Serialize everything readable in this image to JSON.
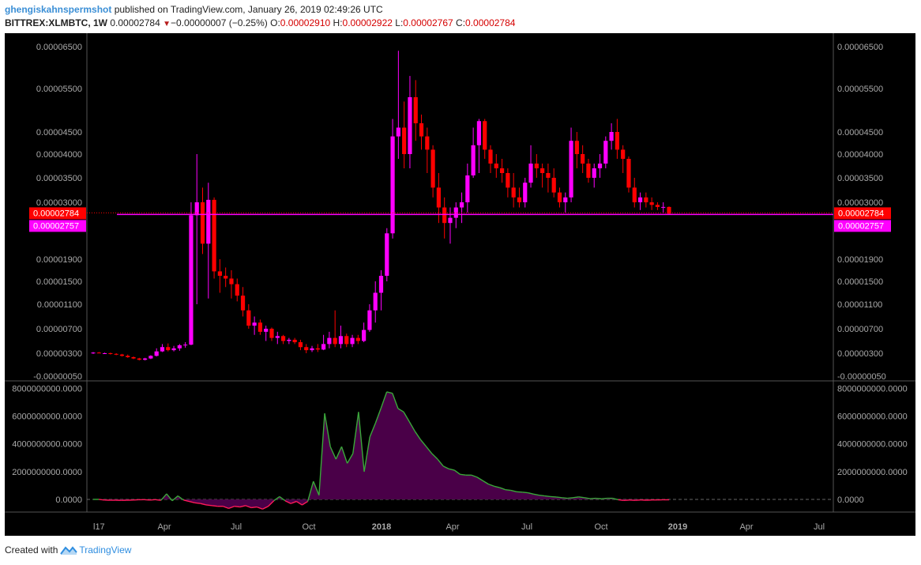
{
  "header": {
    "author": "ghengiskahnspermshot",
    "published": "published on TradingView.com, January 26, 2019 02:49:26 UTC",
    "symbol": "BITTREX:XLMBTC, 1W",
    "last": "0.00002784",
    "change": "−0.00000007 (−0.25%)",
    "o_label": "O:",
    "o_value": "0.00002910",
    "h_label": "H:",
    "h_value": "0.00002922",
    "l_label": "L:",
    "l_value": "0.00002767",
    "c_label": "C:",
    "c_value": "0.00002784"
  },
  "footer": {
    "created_with": "Created with",
    "brand": "TradingView"
  },
  "colors": {
    "up": "#ff00ff",
    "down": "#ff0000",
    "background": "#000000",
    "osc_fill": "#4a0048",
    "osc_line_pos": "#3aa83a",
    "osc_line_neg": "#ff1a5a"
  },
  "chart_data": [
    {
      "type": "candlestick",
      "title": "BITTREX:XLMBTC, 1W",
      "y_tick_labels": [
        "0.00006500",
        "0.00005500",
        "0.00004500",
        "0.00004000",
        "0.00003500",
        "0.00003000",
        "0.00001900",
        "0.00001500",
        "0.00001100",
        "0.00000700",
        "0.00000300",
        "-0.00000050"
      ],
      "price_labels": [
        {
          "value": "0.00002784",
          "color": "#ff0000"
        },
        {
          "value": "0.00002757",
          "color": "#ff00ff"
        }
      ],
      "x_tick_labels": [
        {
          "label": "l17",
          "bold": false
        },
        {
          "label": "Apr",
          "bold": false
        },
        {
          "label": "Jul",
          "bold": false
        },
        {
          "label": "Oct",
          "bold": false
        },
        {
          "label": "2018",
          "bold": true
        },
        {
          "label": "Apr",
          "bold": false
        },
        {
          "label": "Jul",
          "bold": false
        },
        {
          "label": "Oct",
          "bold": false
        },
        {
          "label": "2019",
          "bold": true
        },
        {
          "label": "Apr",
          "bold": false
        },
        {
          "label": "Jul",
          "bold": false
        }
      ],
      "candles": [
        {
          "o": 3e-06,
          "h": 3.2e-06,
          "l": 2.9e-06,
          "c": 3.1e-06
        },
        {
          "o": 3.1e-06,
          "h": 3.2e-06,
          "l": 3e-06,
          "c": 3e-06
        },
        {
          "o": 3e-06,
          "h": 3.1e-06,
          "l": 2.9e-06,
          "c": 3e-06
        },
        {
          "o": 3e-06,
          "h": 3.1e-06,
          "l": 2.8e-06,
          "c": 2.9e-06
        },
        {
          "o": 2.9e-06,
          "h": 3e-06,
          "l": 2.7e-06,
          "c": 2.8e-06
        },
        {
          "o": 2.8e-06,
          "h": 2.9e-06,
          "l": 2.5e-06,
          "c": 2.6e-06
        },
        {
          "o": 2.6e-06,
          "h": 2.8e-06,
          "l": 2.3e-06,
          "c": 2.4e-06
        },
        {
          "o": 2.4e-06,
          "h": 2.5e-06,
          "l": 2.1e-06,
          "c": 2.2e-06
        },
        {
          "o": 2.2e-06,
          "h": 2.3e-06,
          "l": 1.9e-06,
          "c": 2e-06
        },
        {
          "o": 2e-06,
          "h": 2.3e-06,
          "l": 1.9e-06,
          "c": 2.2e-06
        },
        {
          "o": 2.2e-06,
          "h": 2.7e-06,
          "l": 2.1e-06,
          "c": 2.6e-06
        },
        {
          "o": 2.6e-06,
          "h": 3.8e-06,
          "l": 2.5e-06,
          "c": 3.3e-06
        },
        {
          "o": 3.3e-06,
          "h": 4.5e-06,
          "l": 3.2e-06,
          "c": 4e-06
        },
        {
          "o": 4e-06,
          "h": 4.6e-06,
          "l": 3.3e-06,
          "c": 3.5e-06
        },
        {
          "o": 3.5e-06,
          "h": 4.2e-06,
          "l": 3.3e-06,
          "c": 3.8e-06
        },
        {
          "o": 3.8e-06,
          "h": 4.5e-06,
          "l": 3.4e-06,
          "c": 4.3e-06
        },
        {
          "o": 4.3e-06,
          "h": 4.8e-06,
          "l": 3.9e-06,
          "c": 4.4e-06
        },
        {
          "o": 4.4e-06,
          "h": 3e-05,
          "l": 4.3e-06,
          "c": 2.75e-05
        },
        {
          "o": 2.75e-05,
          "h": 4e-05,
          "l": 1.1e-05,
          "c": 3e-05
        },
        {
          "o": 3e-05,
          "h": 3.3e-05,
          "l": 2e-05,
          "c": 2.2e-05
        },
        {
          "o": 2.2e-05,
          "h": 3.4e-05,
          "l": 1.2e-05,
          "c": 3.05e-05
        },
        {
          "o": 3.05e-05,
          "h": 3.1e-05,
          "l": 1.55e-05,
          "c": 1.68e-05
        },
        {
          "o": 1.68e-05,
          "h": 1.9e-05,
          "l": 1.3e-05,
          "c": 1.6e-05
        },
        {
          "o": 1.6e-05,
          "h": 1.75e-05,
          "l": 1.4e-05,
          "c": 1.55e-05
        },
        {
          "o": 1.55e-05,
          "h": 1.7e-05,
          "l": 1.2e-05,
          "c": 1.45e-05
        },
        {
          "o": 1.45e-05,
          "h": 1.55e-05,
          "l": 1.15e-05,
          "c": 1.25e-05
        },
        {
          "o": 1.25e-05,
          "h": 1.4e-05,
          "l": 9e-06,
          "c": 1e-05
        },
        {
          "o": 1e-05,
          "h": 1.1e-05,
          "l": 7e-06,
          "c": 7.5e-06
        },
        {
          "o": 7.5e-06,
          "h": 9e-06,
          "l": 6e-06,
          "c": 8e-06
        },
        {
          "o": 8e-06,
          "h": 8.5e-06,
          "l": 6e-06,
          "c": 6.5e-06
        },
        {
          "o": 6.5e-06,
          "h": 7.5e-06,
          "l": 5e-06,
          "c": 7e-06
        },
        {
          "o": 7e-06,
          "h": 7.2e-06,
          "l": 5e-06,
          "c": 5.5e-06
        },
        {
          "o": 5.5e-06,
          "h": 6.5e-06,
          "l": 4.5e-06,
          "c": 5.8e-06
        },
        {
          "o": 5.8e-06,
          "h": 6e-06,
          "l": 4.5e-06,
          "c": 5e-06
        },
        {
          "o": 5e-06,
          "h": 5.5e-06,
          "l": 4.5e-06,
          "c": 5.2e-06
        },
        {
          "o": 5.2e-06,
          "h": 5.5e-06,
          "l": 4.5e-06,
          "c": 4.8e-06
        },
        {
          "o": 4.8e-06,
          "h": 5.2e-06,
          "l": 3.5e-06,
          "c": 4e-06
        },
        {
          "o": 4e-06,
          "h": 4.5e-06,
          "l": 3e-06,
          "c": 3.5e-06
        },
        {
          "o": 3.5e-06,
          "h": 4.2e-06,
          "l": 3.2e-06,
          "c": 3.8e-06
        },
        {
          "o": 3.8e-06,
          "h": 4.5e-06,
          "l": 3.2e-06,
          "c": 3.6e-06
        },
        {
          "o": 3.6e-06,
          "h": 6e-06,
          "l": 3.5e-06,
          "c": 4.5e-06
        },
        {
          "o": 4.5e-06,
          "h": 6.5e-06,
          "l": 3.8e-06,
          "c": 5.5e-06
        },
        {
          "o": 5.5e-06,
          "h": 1e-05,
          "l": 4e-06,
          "c": 4.5e-06
        },
        {
          "o": 4.5e-06,
          "h": 7.5e-06,
          "l": 3.8e-06,
          "c": 5.8e-06
        },
        {
          "o": 5.8e-06,
          "h": 6.2e-06,
          "l": 4e-06,
          "c": 4.5e-06
        },
        {
          "o": 4.5e-06,
          "h": 6e-06,
          "l": 4e-06,
          "c": 5.5e-06
        },
        {
          "o": 5.5e-06,
          "h": 6e-06,
          "l": 4.5e-06,
          "c": 5e-06
        },
        {
          "o": 5e-06,
          "h": 8e-06,
          "l": 4.8e-06,
          "c": 6.8e-06
        },
        {
          "o": 6.8e-06,
          "h": 1.1e-05,
          "l": 6.5e-06,
          "c": 1e-05
        },
        {
          "o": 1e-05,
          "h": 1.5e-05,
          "l": 8e-06,
          "c": 1.3e-05
        },
        {
          "o": 1.3e-05,
          "h": 1.7e-05,
          "l": 1e-05,
          "c": 1.6e-05
        },
        {
          "o": 1.6e-05,
          "h": 2.5e-05,
          "l": 1.5e-05,
          "c": 2.4e-05
        },
        {
          "o": 2.4e-05,
          "h": 4.8e-05,
          "l": 2.3e-05,
          "c": 4.4e-05
        },
        {
          "o": 4.4e-05,
          "h": 6.4e-05,
          "l": 3.9e-05,
          "c": 4.6e-05
        },
        {
          "o": 4.6e-05,
          "h": 5.2e-05,
          "l": 3.7e-05,
          "c": 4e-05
        },
        {
          "o": 4e-05,
          "h": 5.8e-05,
          "l": 3.7e-05,
          "c": 5.3e-05
        },
        {
          "o": 5.3e-05,
          "h": 5.7e-05,
          "l": 4.3e-05,
          "c": 4.7e-05
        },
        {
          "o": 4.7e-05,
          "h": 4.9e-05,
          "l": 4.1e-05,
          "c": 4.4e-05
        },
        {
          "o": 4.4e-05,
          "h": 4.6e-05,
          "l": 3.6e-05,
          "c": 4.1e-05
        },
        {
          "o": 4.1e-05,
          "h": 4.2e-05,
          "l": 3.1e-05,
          "c": 3.3e-05
        },
        {
          "o": 3.3e-05,
          "h": 3.6e-05,
          "l": 2.6e-05,
          "c": 2.9e-05
        },
        {
          "o": 2.9e-05,
          "h": 3.1e-05,
          "l": 2.3e-05,
          "c": 2.6e-05
        },
        {
          "o": 2.6e-05,
          "h": 2.9e-05,
          "l": 2.2e-05,
          "c": 2.7e-05
        },
        {
          "o": 2.7e-05,
          "h": 3e-05,
          "l": 2.5e-05,
          "c": 2.9e-05
        },
        {
          "o": 2.9e-05,
          "h": 3.2e-05,
          "l": 2.6e-05,
          "c": 3e-05
        },
        {
          "o": 3e-05,
          "h": 3.8e-05,
          "l": 2.8e-05,
          "c": 3.55e-05
        },
        {
          "o": 3.55e-05,
          "h": 4.6e-05,
          "l": 3.5e-05,
          "c": 4.2e-05
        },
        {
          "o": 4.2e-05,
          "h": 4.8e-05,
          "l": 3.6e-05,
          "c": 4.75e-05
        },
        {
          "o": 4.75e-05,
          "h": 4.8e-05,
          "l": 3.9e-05,
          "c": 4.1e-05
        },
        {
          "o": 4.1e-05,
          "h": 4.2e-05,
          "l": 3.6e-05,
          "c": 3.8e-05
        },
        {
          "o": 3.8e-05,
          "h": 4e-05,
          "l": 3.5e-05,
          "c": 3.7e-05
        },
        {
          "o": 3.7e-05,
          "h": 3.9e-05,
          "l": 3.4e-05,
          "c": 3.6e-05
        },
        {
          "o": 3.6e-05,
          "h": 3.7e-05,
          "l": 3.1e-05,
          "c": 3.3e-05
        },
        {
          "o": 3.3e-05,
          "h": 3.6e-05,
          "l": 2.9e-05,
          "c": 3.1e-05
        },
        {
          "o": 3.1e-05,
          "h": 3.3e-05,
          "l": 2.9e-05,
          "c": 3e-05
        },
        {
          "o": 3e-05,
          "h": 3.5e-05,
          "l": 2.9e-05,
          "c": 3.4e-05
        },
        {
          "o": 3.4e-05,
          "h": 4.2e-05,
          "l": 3.3e-05,
          "c": 3.8e-05
        },
        {
          "o": 3.8e-05,
          "h": 4e-05,
          "l": 3.5e-05,
          "c": 3.7e-05
        },
        {
          "o": 3.7e-05,
          "h": 3.8e-05,
          "l": 3.3e-05,
          "c": 3.6e-05
        },
        {
          "o": 3.6e-05,
          "h": 3.8e-05,
          "l": 3.2e-05,
          "c": 3.5e-05
        },
        {
          "o": 3.5e-05,
          "h": 3.7e-05,
          "l": 3.1e-05,
          "c": 3.2e-05
        },
        {
          "o": 3.2e-05,
          "h": 3.3e-05,
          "l": 2.9e-05,
          "c": 3e-05
        },
        {
          "o": 3e-05,
          "h": 3.2e-05,
          "l": 2.8e-05,
          "c": 3.1e-05
        },
        {
          "o": 3.1e-05,
          "h": 4.6e-05,
          "l": 3e-05,
          "c": 4.3e-05
        },
        {
          "o": 4.3e-05,
          "h": 4.5e-05,
          "l": 3.7e-05,
          "c": 4e-05
        },
        {
          "o": 4e-05,
          "h": 4.2e-05,
          "l": 3.6e-05,
          "c": 3.8e-05
        },
        {
          "o": 3.8e-05,
          "h": 3.9e-05,
          "l": 3.4e-05,
          "c": 3.5e-05
        },
        {
          "o": 3.5e-05,
          "h": 3.8e-05,
          "l": 3.3e-05,
          "c": 3.7e-05
        },
        {
          "o": 3.7e-05,
          "h": 4e-05,
          "l": 3.5e-05,
          "c": 3.8e-05
        },
        {
          "o": 3.8e-05,
          "h": 4.4e-05,
          "l": 3.7e-05,
          "c": 4.3e-05
        },
        {
          "o": 4.3e-05,
          "h": 4.7e-05,
          "l": 4.1e-05,
          "c": 4.5e-05
        },
        {
          "o": 4.5e-05,
          "h": 4.8e-05,
          "l": 3.9e-05,
          "c": 4.1e-05
        },
        {
          "o": 4.1e-05,
          "h": 4.2e-05,
          "l": 3.6e-05,
          "c": 3.9e-05
        },
        {
          "o": 3.9e-05,
          "h": 3.95e-05,
          "l": 3.2e-05,
          "c": 3.3e-05
        },
        {
          "o": 3.3e-05,
          "h": 3.5e-05,
          "l": 2.9e-05,
          "c": 3e-05
        },
        {
          "o": 3e-05,
          "h": 3.2e-05,
          "l": 2.85e-05,
          "c": 3.1e-05
        },
        {
          "o": 3.1e-05,
          "h": 3.2e-05,
          "l": 2.9e-05,
          "c": 3e-05
        },
        {
          "o": 3e-05,
          "h": 3.1e-05,
          "l": 2.85e-05,
          "c": 2.95e-05
        },
        {
          "o": 2.95e-05,
          "h": 3e-05,
          "l": 2.85e-05,
          "c": 2.91e-05
        },
        {
          "o": 2.91e-05,
          "h": 3e-05,
          "l": 2.8e-05,
          "c": 2.91e-05
        },
        {
          "o": 2.91e-05,
          "h": 2.92e-05,
          "l": 2.76e-05,
          "c": 2.78e-05
        }
      ]
    },
    {
      "type": "area",
      "y_tick_labels": [
        "8000000000.0000",
        "6000000000.0000",
        "4000000000.0000",
        "2000000000.0000",
        "0.0000"
      ],
      "ylim": [
        -800000000,
        8200000000
      ],
      "values": [
        0,
        0,
        -50000000,
        -60000000,
        -60000000,
        -70000000,
        -60000000,
        -50000000,
        -30000000,
        -20000000,
        -50000000,
        -20000000,
        -70000000,
        400000000,
        -100000000,
        250000000,
        -50000000,
        -150000000,
        -250000000,
        -300000000,
        -400000000,
        -450000000,
        -500000000,
        -500000000,
        -650000000,
        -500000000,
        -550000000,
        -450000000,
        -600000000,
        -550000000,
        -700000000,
        -500000000,
        -100000000,
        200000000,
        -100000000,
        -300000000,
        -150000000,
        -400000000,
        -150000000,
        1300000000,
        300000000,
        6200000000,
        3800000000,
        2900000000,
        3800000000,
        2600000000,
        3300000000,
        6300000000,
        2000000000,
        4500000000,
        5500000000,
        6600000000,
        7750000000,
        7650000000,
        6550000000,
        6300000000,
        5600000000,
        4900000000,
        4300000000,
        3800000000,
        3300000000,
        2900000000,
        2400000000,
        2200000000,
        2100000000,
        1800000000,
        1750000000,
        1750000000,
        1600000000,
        1350000000,
        1100000000,
        950000000,
        850000000,
        700000000,
        650000000,
        550000000,
        520000000,
        480000000,
        380000000,
        300000000,
        250000000,
        200000000,
        170000000,
        120000000,
        80000000,
        120000000,
        180000000,
        120000000,
        50000000,
        80000000,
        40000000,
        80000000,
        80000000,
        -30000000,
        -80000000,
        -50000000,
        -70000000,
        -40000000,
        -60000000,
        -40000000,
        -40000000,
        -30000000,
        -30000000
      ]
    }
  ]
}
